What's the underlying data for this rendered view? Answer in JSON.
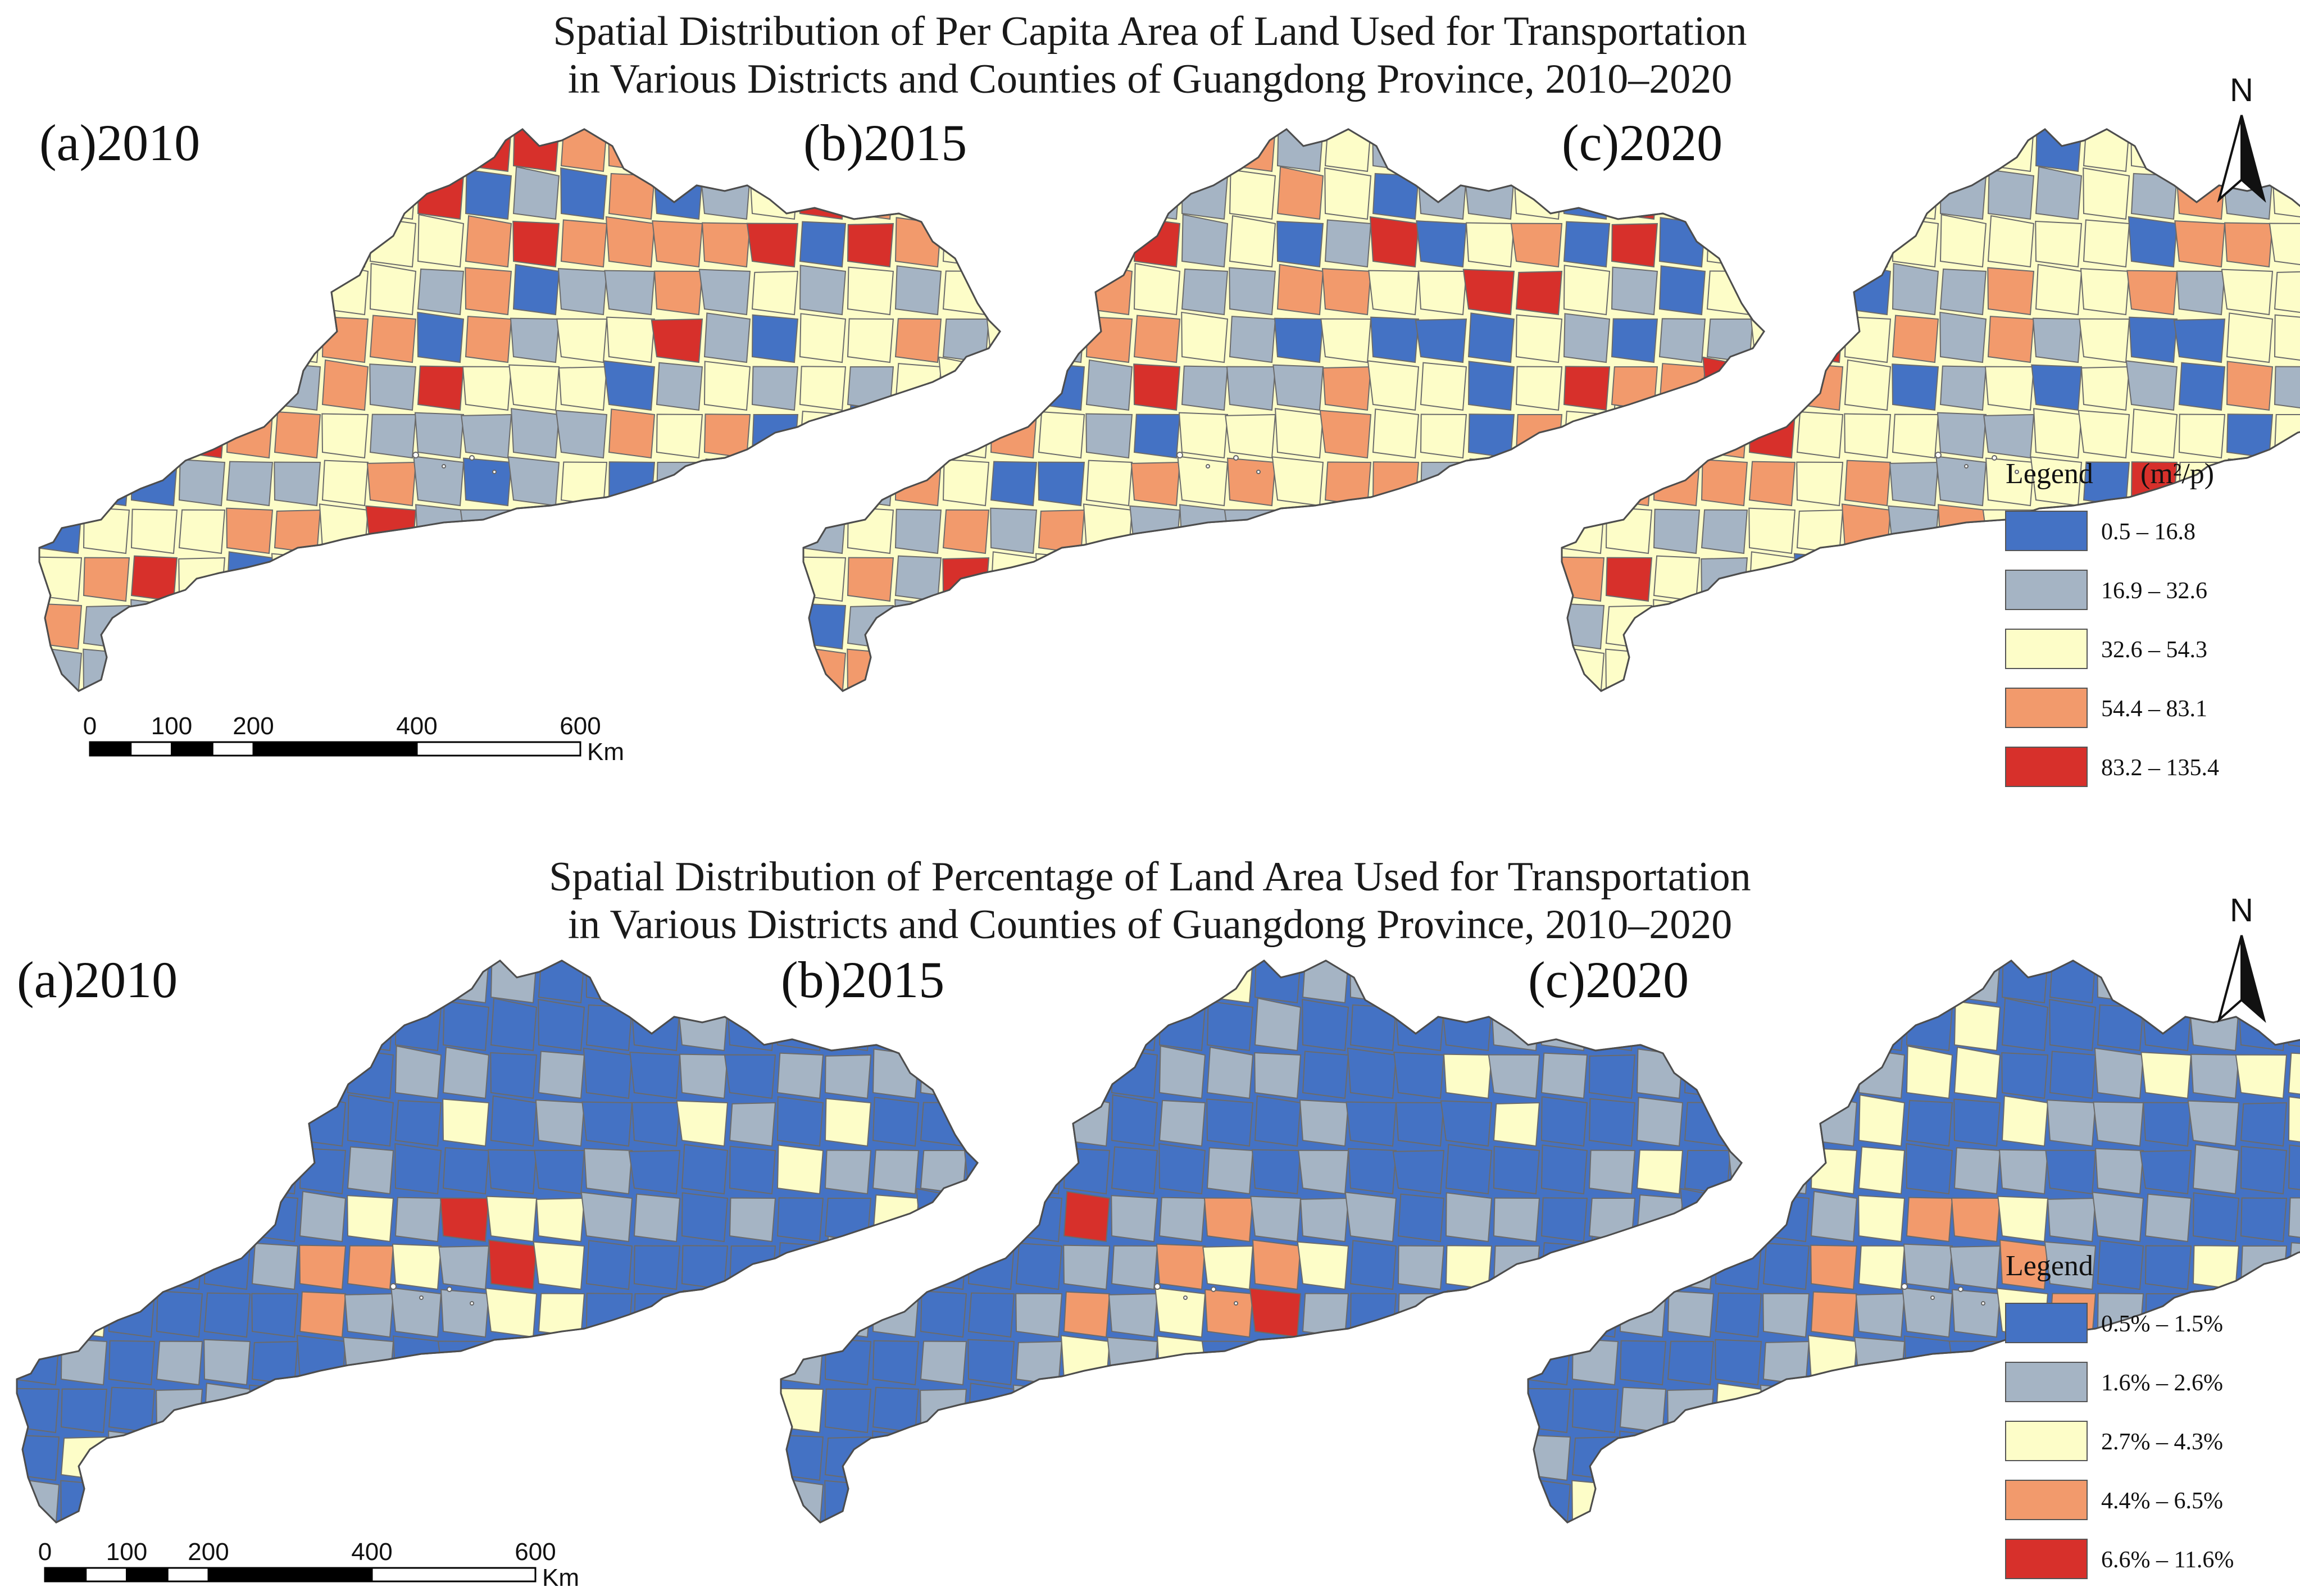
{
  "sections": [
    {
      "title_lines": [
        "Spatial Distribution of Per Capita Area of Land Used for Transportation",
        "in Various Districts and Counties of Guangdong Province, 2010–2020"
      ],
      "panels": [
        {
          "label": "(a)2010",
          "base_class": 2
        },
        {
          "label": "(b)2015",
          "base_class": 2
        },
        {
          "label": "(c)2020",
          "base_class": 2
        }
      ],
      "legend": {
        "title": "Legend",
        "unit": "(m²/p)",
        "classes": [
          {
            "label": "0.5 – 16.8",
            "color": "#4472c4"
          },
          {
            "label": "16.9 – 32.6",
            "color": "#a5b4c4"
          },
          {
            "label": "32.6 – 54.3",
            "color": "#fdfdc8"
          },
          {
            "label": "54.4 – 83.1",
            "color": "#f29a6c"
          },
          {
            "label": "83.2 – 135.4",
            "color": "#d7302b"
          }
        ]
      },
      "scale": {
        "ticks": [
          "0",
          "100",
          "200",
          "400",
          "600"
        ],
        "unit": "Km"
      },
      "north": "N"
    },
    {
      "title_lines": [
        "Spatial Distribution of Percentage of Land Area Used for Transportation",
        "in Various Districts and Counties of Guangdong Province, 2010–2020"
      ],
      "panels": [
        {
          "label": "(a)2010",
          "base_class": 0
        },
        {
          "label": "(b)2015",
          "base_class": 0
        },
        {
          "label": "(c)2020",
          "base_class": 0
        }
      ],
      "legend": {
        "title": "Legend",
        "unit": "",
        "classes": [
          {
            "label": "0.5% – 1.5%",
            "color": "#4472c4"
          },
          {
            "label": "1.6% – 2.6%",
            "color": "#a5b4c4"
          },
          {
            "label": "2.7% – 4.3%",
            "color": "#fdfdc8"
          },
          {
            "label": "4.4% – 6.5%",
            "color": "#f29a6c"
          },
          {
            "label": "6.6% – 11.6%",
            "color": "#d7302b"
          }
        ]
      },
      "scale": {
        "ticks": [
          "0",
          "100",
          "200",
          "400",
          "600"
        ],
        "unit": "Km"
      },
      "north": "N"
    }
  ]
}
